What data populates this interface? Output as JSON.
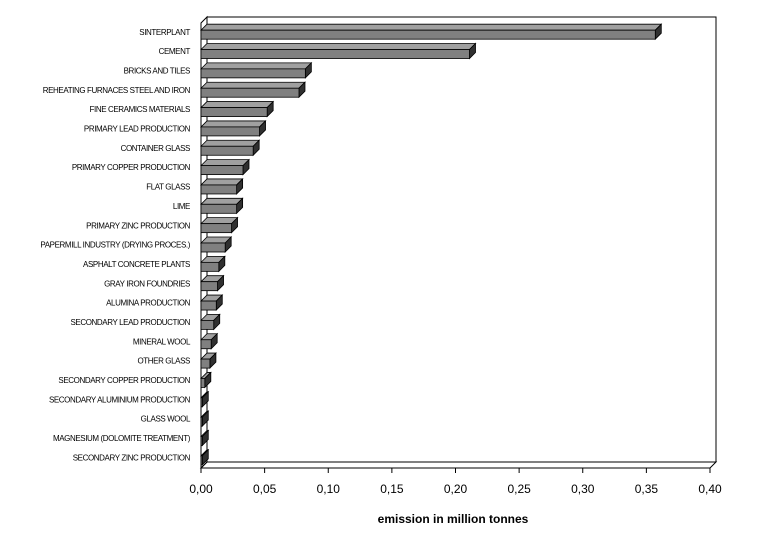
{
  "chart_data": {
    "type": "bar3d_horizontal",
    "xlabel": "emission in million tonnes",
    "categories": [
      "SINTERPLANT",
      "CEMENT",
      "BRICKS AND TILES",
      "REHEATING FURNACES STEEL AND IRON",
      "FINE CERAMICS MATERIALS",
      "PRIMARY LEAD PRODUCTION",
      "CONTAINER GLASS",
      "PRIMARY COPPER PRODUCTION",
      "FLAT GLASS",
      "LIME",
      "PRIMARY ZINC PRODUCTION",
      "PAPERMILL INDUSTRY (DRYING PROCES.)",
      "ASPHALT CONCRETE PLANTS",
      "GRAY IRON FOUNDRIES",
      "ALUMINA PRODUCTION",
      "SECONDARY LEAD PRODUCTION",
      "MINERAL WOOL",
      "OTHER GLASS",
      "SECONDARY COPPER PRODUCTION",
      "SECONDARY ALUMINIUM PRODUCTION",
      "GLASS WOOL",
      "MAGNESIUM (DOLOMITE TREATMENT)",
      "SECONDARY ZINC PRODUCTION"
    ],
    "values": [
      0.357,
      0.211,
      0.082,
      0.077,
      0.052,
      0.046,
      0.041,
      0.033,
      0.028,
      0.028,
      0.024,
      0.019,
      0.014,
      0.013,
      0.012,
      0.01,
      0.008,
      0.007,
      0.003,
      0.001,
      0.001,
      0.001,
      0.001
    ],
    "color": "#808080",
    "xlim": [
      0,
      0.4
    ],
    "xticks": [
      {
        "value": 0,
        "label": "0,00"
      },
      {
        "value": 0.05,
        "label": "0,05"
      },
      {
        "value": 0.1,
        "label": "0,10"
      },
      {
        "value": 0.15,
        "label": "0,15"
      },
      {
        "value": 0.2,
        "label": "0,20"
      },
      {
        "value": 0.25,
        "label": "0,25"
      },
      {
        "value": 0.3,
        "label": "0,30"
      },
      {
        "value": 0.35,
        "label": "0,35"
      },
      {
        "value": 0.4,
        "label": "0,40"
      }
    ]
  }
}
